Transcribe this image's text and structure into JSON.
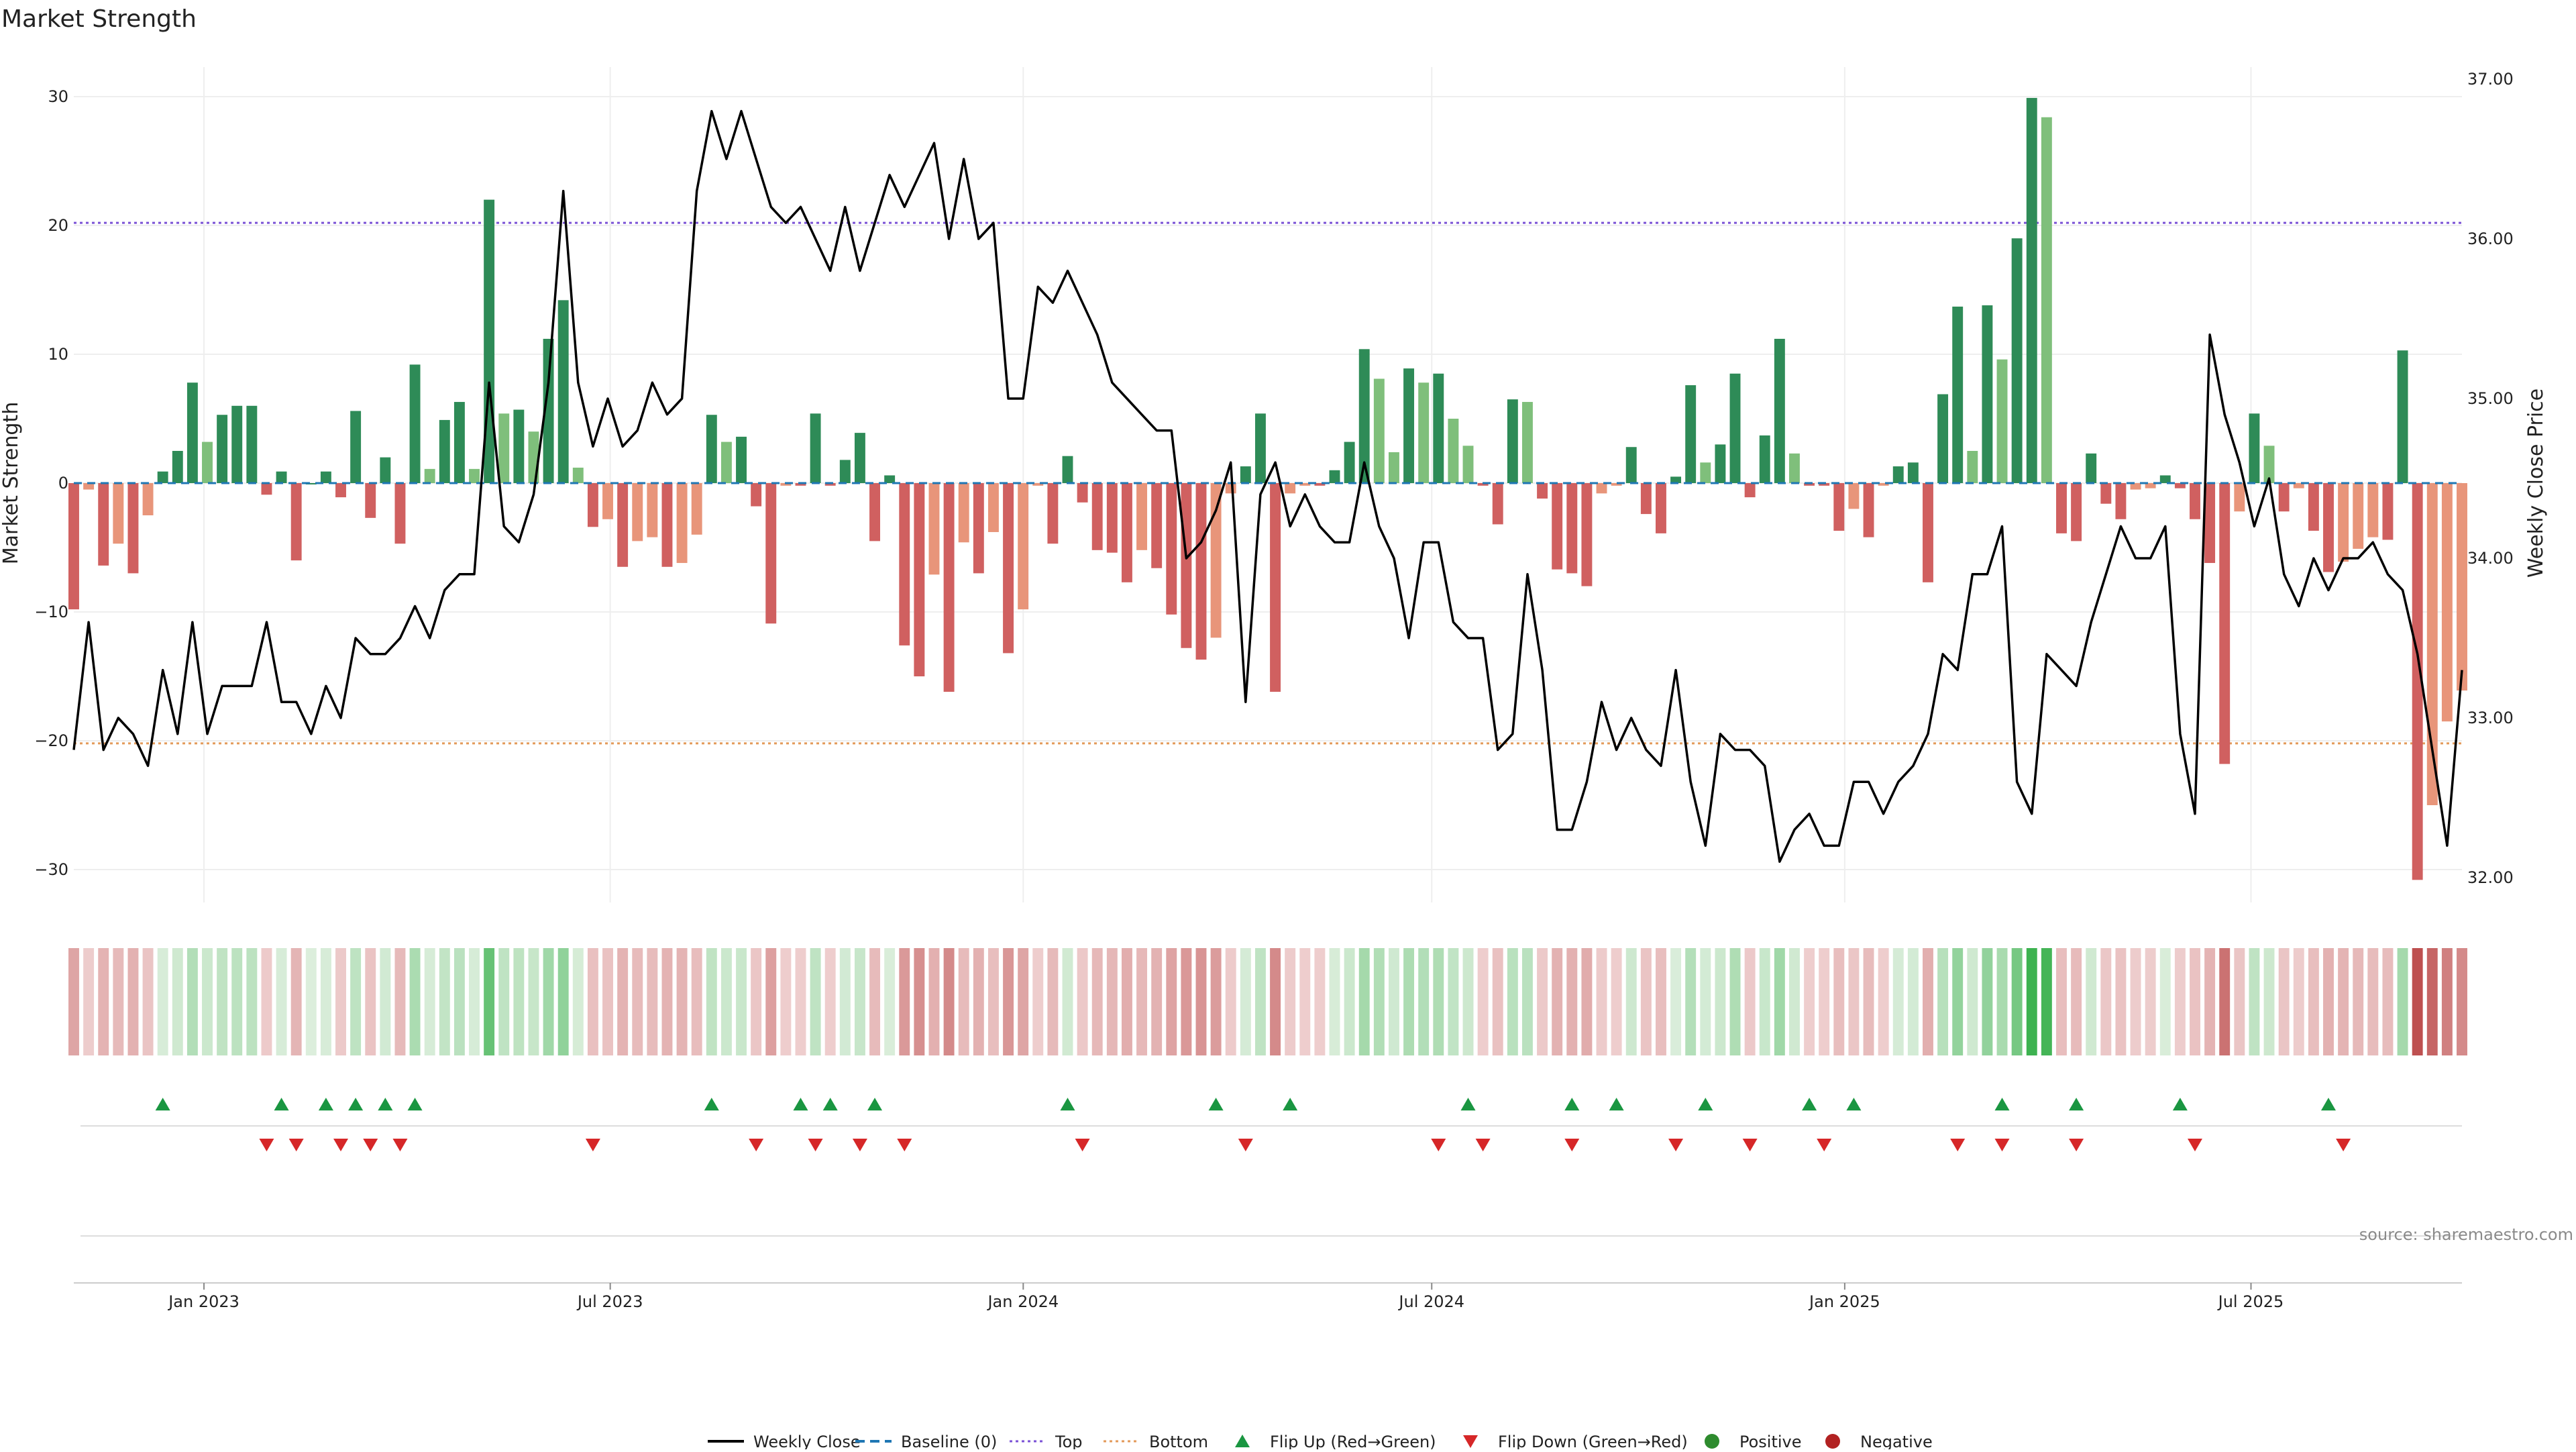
{
  "chart_data": {
    "type": "bar",
    "title": "Market Strength",
    "ylabel_left": "Market Strength",
    "ylabel_right": "Weekly Close Price",
    "source": "source: sharemaestro.com",
    "ylim_left": [
      -33,
      33
    ],
    "ylim_right": [
      31.8,
      37.1
    ],
    "yticks_left": [
      30,
      20,
      10,
      0,
      -10,
      -20,
      -30
    ],
    "ytick_labels_left": [
      "30",
      "20",
      "10",
      "0",
      "−10",
      "−20",
      "−30"
    ],
    "yticks_right": [
      37.0,
      36.0,
      35.0,
      34.0,
      33.0,
      32.0
    ],
    "ytick_labels_right": [
      "37.00",
      "36.00",
      "35.00",
      "34.00",
      "33.00",
      "32.00"
    ],
    "date_start": "2022-11-04",
    "date_end": "2025-10-03",
    "x_ticks": [
      {
        "date": "2023-01-01",
        "label": "Jan 2023"
      },
      {
        "date": "2023-07-01",
        "label": "Jul 2023"
      },
      {
        "date": "2024-01-01",
        "label": "Jan 2024"
      },
      {
        "date": "2024-07-01",
        "label": "Jul 2024"
      },
      {
        "date": "2025-01-01",
        "label": "Jan 2025"
      },
      {
        "date": "2025-07-01",
        "label": "Jul 2025"
      }
    ],
    "top_line": 20.2,
    "bottom_line": -20.2,
    "strength": [
      -9.8,
      -0.5,
      -6.4,
      -4.7,
      -7.0,
      -2.5,
      0.9,
      2.5,
      7.8,
      3.2,
      5.3,
      6.0,
      6.0,
      -0.9,
      0.9,
      -6.0,
      0,
      0.9,
      -1.1,
      5.6,
      -2.7,
      2.0,
      -4.7,
      9.2,
      1.1,
      4.9,
      6.3,
      1.1,
      22.0,
      5.4,
      5.7,
      4.0,
      11.2,
      14.2,
      1.2,
      -3.4,
      -2.8,
      -6.5,
      -4.5,
      -4.2,
      -6.5,
      -6.2,
      -4.0,
      5.3,
      3.2,
      3.6,
      -1.8,
      -10.9,
      -0.2,
      -0.2,
      5.4,
      -0.2,
      1.8,
      3.9,
      -4.5,
      0.6,
      -12.6,
      -15.0,
      -7.1,
      -16.2,
      -4.6,
      -7.0,
      -3.8,
      -13.2,
      -9.8,
      -0.2,
      -4.7,
      2.1,
      -1.5,
      -5.2,
      -5.4,
      -7.7,
      -5.2,
      -6.6,
      -10.2,
      -12.8,
      -13.7,
      -12.0,
      -0.8,
      1.3,
      5.4,
      -16.2,
      -0.8,
      -0.2,
      -0.2,
      1.0,
      3.2,
      10.4,
      8.1,
      2.4,
      8.9,
      7.8,
      8.5,
      5.0,
      2.9,
      -0.2,
      -3.2,
      6.5,
      6.3,
      -1.2,
      -6.7,
      -7.0,
      -8.0,
      -0.8,
      -0.2,
      2.8,
      -2.4,
      -3.9,
      0.5,
      7.6,
      1.6,
      3.0,
      8.5,
      -1.1,
      3.7,
      11.2,
      2.3,
      -0.2,
      -0.2,
      -3.7,
      -2.0,
      -4.2,
      -0.2,
      1.3,
      1.6,
      -7.7,
      6.9,
      13.7,
      2.5,
      13.8,
      9.6,
      19.0,
      29.9,
      28.4,
      -3.9,
      -4.5,
      2.3,
      -1.6,
      -2.8,
      -0.5,
      -0.4,
      0.6,
      -0.4,
      -2.8,
      -6.2,
      -21.8,
      -2.2,
      5.4,
      2.9,
      -2.2,
      -0.4,
      -3.7,
      -6.9,
      -6.1,
      -5.1,
      -4.2,
      -4.4,
      10.3,
      -30.8,
      -25.0,
      -18.5,
      -16.1
    ],
    "close": [
      32.8,
      33.6,
      32.8,
      33.0,
      32.9,
      32.7,
      33.3,
      32.9,
      33.6,
      32.9,
      33.2,
      33.2,
      33.2,
      33.6,
      33.1,
      33.1,
      32.9,
      33.2,
      33.0,
      33.5,
      33.4,
      33.4,
      33.5,
      33.7,
      33.5,
      33.8,
      33.9,
      33.9,
      35.1,
      34.2,
      34.1,
      34.4,
      35.1,
      36.3,
      35.1,
      34.7,
      35.0,
      34.7,
      34.8,
      35.1,
      34.9,
      35.0,
      36.3,
      36.8,
      36.5,
      36.8,
      36.5,
      36.2,
      36.1,
      36.2,
      36.0,
      35.8,
      36.2,
      35.8,
      36.1,
      36.4,
      36.2,
      36.4,
      36.6,
      36.0,
      36.5,
      36.0,
      36.1,
      35.0,
      35.0,
      35.7,
      35.6,
      35.8,
      35.6,
      35.4,
      35.1,
      35.0,
      34.9,
      34.8,
      34.8,
      34.0,
      34.1,
      34.3,
      34.6,
      33.1,
      34.4,
      34.6,
      34.2,
      34.4,
      34.2,
      34.1,
      34.1,
      34.6,
      34.2,
      34.0,
      33.5,
      34.1,
      34.1,
      33.6,
      33.5,
      33.5,
      32.8,
      32.9,
      33.9,
      33.3,
      32.3,
      32.3,
      32.6,
      33.1,
      32.8,
      33.0,
      32.8,
      32.7,
      33.3,
      32.6,
      32.2,
      32.9,
      32.8,
      32.8,
      32.7,
      32.1,
      32.3,
      32.4,
      32.2,
      32.2,
      32.6,
      32.6,
      32.4,
      32.6,
      32.7,
      32.9,
      33.4,
      33.3,
      33.9,
      33.9,
      34.2,
      32.6,
      32.4,
      33.4,
      33.3,
      33.2,
      33.6,
      33.9,
      34.2,
      34.0,
      34.0,
      34.2,
      32.9,
      32.4,
      35.4,
      34.9,
      34.6,
      34.2,
      34.5,
      33.9,
      33.7,
      34.0,
      33.8,
      34.0,
      34.0,
      34.1,
      33.9,
      33.8,
      33.4,
      32.8,
      32.2,
      33.3
    ],
    "flip_up": [
      6,
      14,
      17,
      19,
      21,
      23,
      43,
      49,
      51,
      54,
      67,
      77,
      82,
      94,
      101,
      104,
      110,
      117,
      120,
      130,
      135,
      142,
      152
    ],
    "flip_down": [
      13,
      15,
      18,
      20,
      22,
      35,
      46,
      50,
      53,
      56,
      68,
      79,
      92,
      95,
      101,
      108,
      113,
      118,
      127,
      130,
      135,
      143,
      153
    ],
    "series": [
      {
        "name": "Weekly Close",
        "color": "#000000"
      },
      {
        "name": "Baseline (0)",
        "color": "#1f77b4"
      },
      {
        "name": "Top",
        "color": "#7b52d6"
      },
      {
        "name": "Bottom",
        "color": "#e39a5a"
      },
      {
        "name": "Flip Up (Red→Green)",
        "color": "#1a9641"
      },
      {
        "name": "Flip Down (Green→Red)",
        "color": "#d62728"
      },
      {
        "name": "Positive",
        "color": "#2e8b2e"
      },
      {
        "name": "Negative",
        "color": "#b22222"
      }
    ],
    "legend_position": "bottom-center",
    "grid": true
  }
}
